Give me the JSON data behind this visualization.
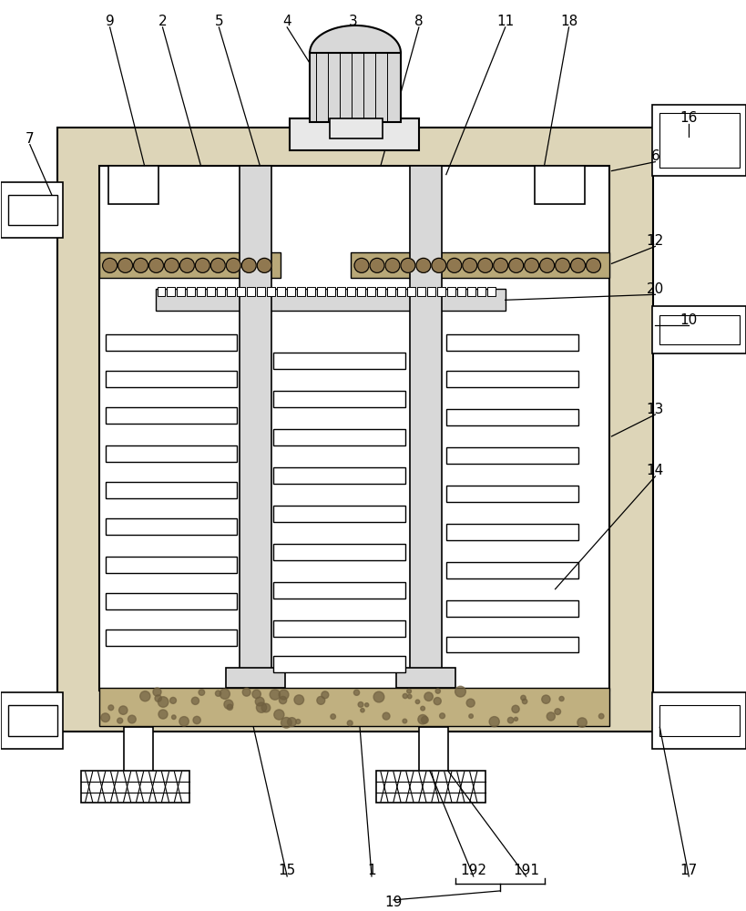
{
  "bg": "#ffffff",
  "lc": "#000000",
  "stipple": "#ddd5b8",
  "gravel": "#b8a878",
  "sand": "#c0b080",
  "gray1": "#d8d8d8",
  "gray2": "#e8e8e8",
  "figsize": [
    8.2,
    10.0
  ],
  "dpi": 100
}
